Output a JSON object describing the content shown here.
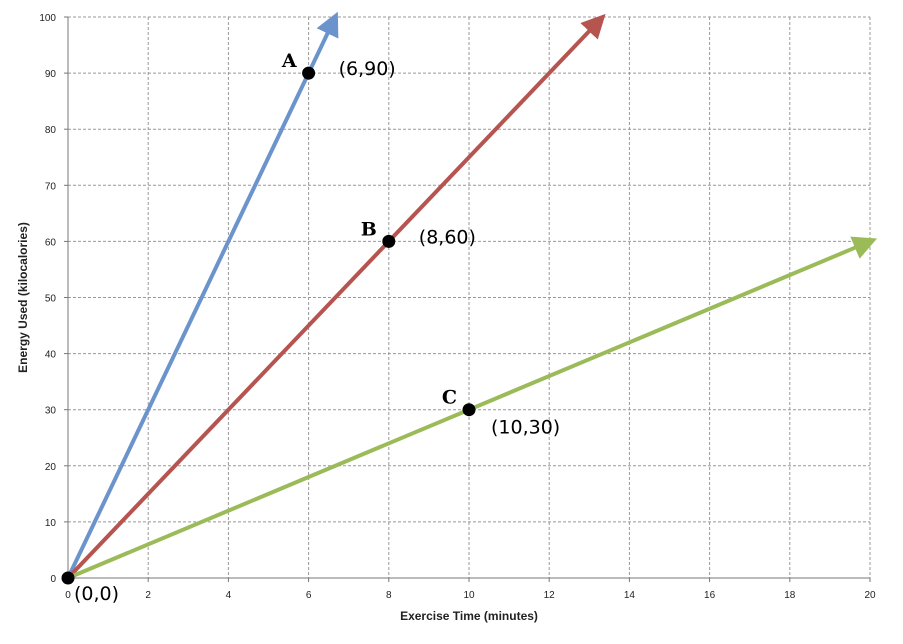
{
  "chart_data": {
    "type": "line",
    "xlabel": "Exercise Time (minutes)",
    "ylabel": "Energy Used (kilocalories)",
    "xlim": [
      0,
      20
    ],
    "ylim": [
      0,
      100
    ],
    "x_ticks": [
      0,
      2,
      4,
      6,
      8,
      10,
      12,
      14,
      16,
      18,
      20
    ],
    "y_ticks": [
      0,
      10,
      20,
      30,
      40,
      50,
      60,
      70,
      80,
      90,
      100
    ],
    "grid": true,
    "series": [
      {
        "color": "#6b93cc",
        "x": [
          0,
          6.6
        ],
        "y": [
          0,
          99
        ],
        "arrow_end": true
      },
      {
        "color": "#b65450",
        "x": [
          0,
          13.2
        ],
        "y": [
          0,
          99
        ],
        "arrow_end": true
      },
      {
        "color": "#9bbb59",
        "x": [
          0,
          19.9
        ],
        "y": [
          0,
          59.7
        ],
        "arrow_end": true
      }
    ],
    "points": [
      {
        "letter": "",
        "label": "(0,0)",
        "x": 0,
        "y": 0,
        "label_side": "below-right"
      },
      {
        "letter": "A",
        "label": "(6,90)",
        "x": 6,
        "y": 90,
        "label_side": "right"
      },
      {
        "letter": "B",
        "label": "(8,60)",
        "x": 8,
        "y": 60,
        "label_side": "right"
      },
      {
        "letter": "C",
        "label": "(10,30)",
        "x": 10,
        "y": 30,
        "label_side": "below-right"
      }
    ]
  }
}
